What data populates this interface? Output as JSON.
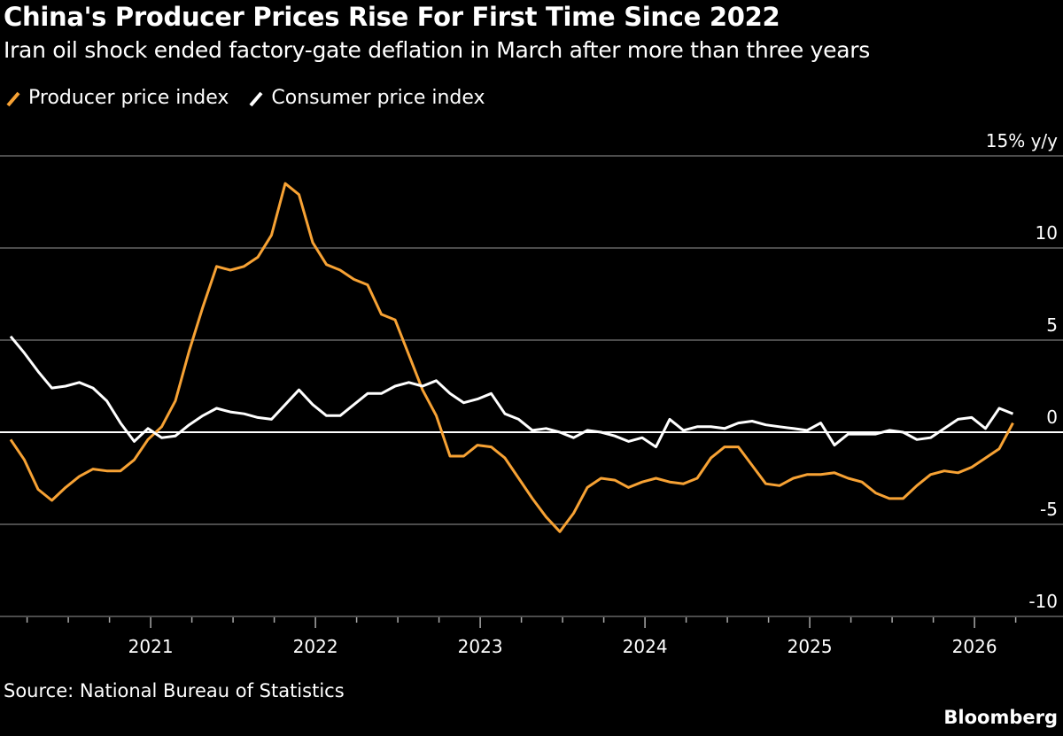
{
  "chart_data": {
    "type": "line",
    "title": "China's Producer Prices Rise For First Time Since 2022",
    "subtitle": "Iran oil shock ended factory-gate deflation in March after more than three years",
    "source": "Source: National Bureau of Statistics",
    "brand": "Bloomberg",
    "y_unit_label": "15% y/y",
    "ylim": [
      -10,
      15
    ],
    "yticks": [
      {
        "value": 15,
        "label": "15% y/y"
      },
      {
        "value": 10,
        "label": "10"
      },
      {
        "value": 5,
        "label": "5"
      },
      {
        "value": 0,
        "label": "0"
      },
      {
        "value": -5,
        "label": "-5"
      },
      {
        "value": -10,
        "label": "-10"
      }
    ],
    "xticks": [
      "2021",
      "2022",
      "2023",
      "2024",
      "2025",
      "2026"
    ],
    "grid": true,
    "legend_placement": "top-left",
    "x_start": "2020-02",
    "x_end": "2026-03",
    "frequency": "monthly",
    "series": [
      {
        "name": "Producer price index",
        "color": "#f7a234",
        "values": [
          -0.4,
          -1.5,
          -3.1,
          -3.7,
          -3.0,
          -2.4,
          -2.0,
          -2.1,
          -2.1,
          -1.5,
          -0.4,
          0.3,
          1.7,
          4.4,
          6.8,
          9.0,
          8.8,
          9.0,
          9.5,
          10.7,
          13.5,
          12.9,
          10.3,
          9.1,
          8.8,
          8.3,
          8.0,
          6.4,
          6.1,
          4.2,
          2.3,
          0.9,
          -1.3,
          -1.3,
          -0.7,
          -0.8,
          -1.4,
          -2.5,
          -3.6,
          -4.6,
          -5.4,
          -4.4,
          -3.0,
          -2.5,
          -2.6,
          -3.0,
          -2.7,
          -2.5,
          -2.7,
          -2.8,
          -2.5,
          -1.4,
          -0.8,
          -0.8,
          -1.8,
          -2.8,
          -2.9,
          -2.5,
          -2.3,
          -2.3,
          -2.2,
          -2.5,
          -2.7,
          -3.3,
          -3.6,
          -3.6,
          -2.9,
          -2.3,
          -2.1,
          -2.2,
          -1.9,
          -1.4,
          -0.9,
          0.5
        ]
      },
      {
        "name": "Consumer price index",
        "color": "#ffffff",
        "values": [
          5.2,
          4.3,
          3.3,
          2.4,
          2.5,
          2.7,
          2.4,
          1.7,
          0.5,
          -0.5,
          0.2,
          -0.3,
          -0.2,
          0.4,
          0.9,
          1.3,
          1.1,
          1.0,
          0.8,
          0.7,
          1.5,
          2.3,
          1.5,
          0.9,
          0.9,
          1.5,
          2.1,
          2.1,
          2.5,
          2.7,
          2.5,
          2.8,
          2.1,
          1.6,
          1.8,
          2.1,
          1.0,
          0.7,
          0.1,
          0.2,
          0.0,
          -0.3,
          0.1,
          0.0,
          -0.2,
          -0.5,
          -0.3,
          -0.8,
          0.7,
          0.1,
          0.3,
          0.3,
          0.2,
          0.5,
          0.6,
          0.4,
          0.3,
          0.2,
          0.1,
          0.5,
          -0.7,
          -0.1,
          -0.1,
          -0.1,
          0.1,
          0.0,
          -0.4,
          -0.3,
          0.2,
          0.7,
          0.8,
          0.2,
          1.3,
          1.0
        ]
      }
    ]
  }
}
